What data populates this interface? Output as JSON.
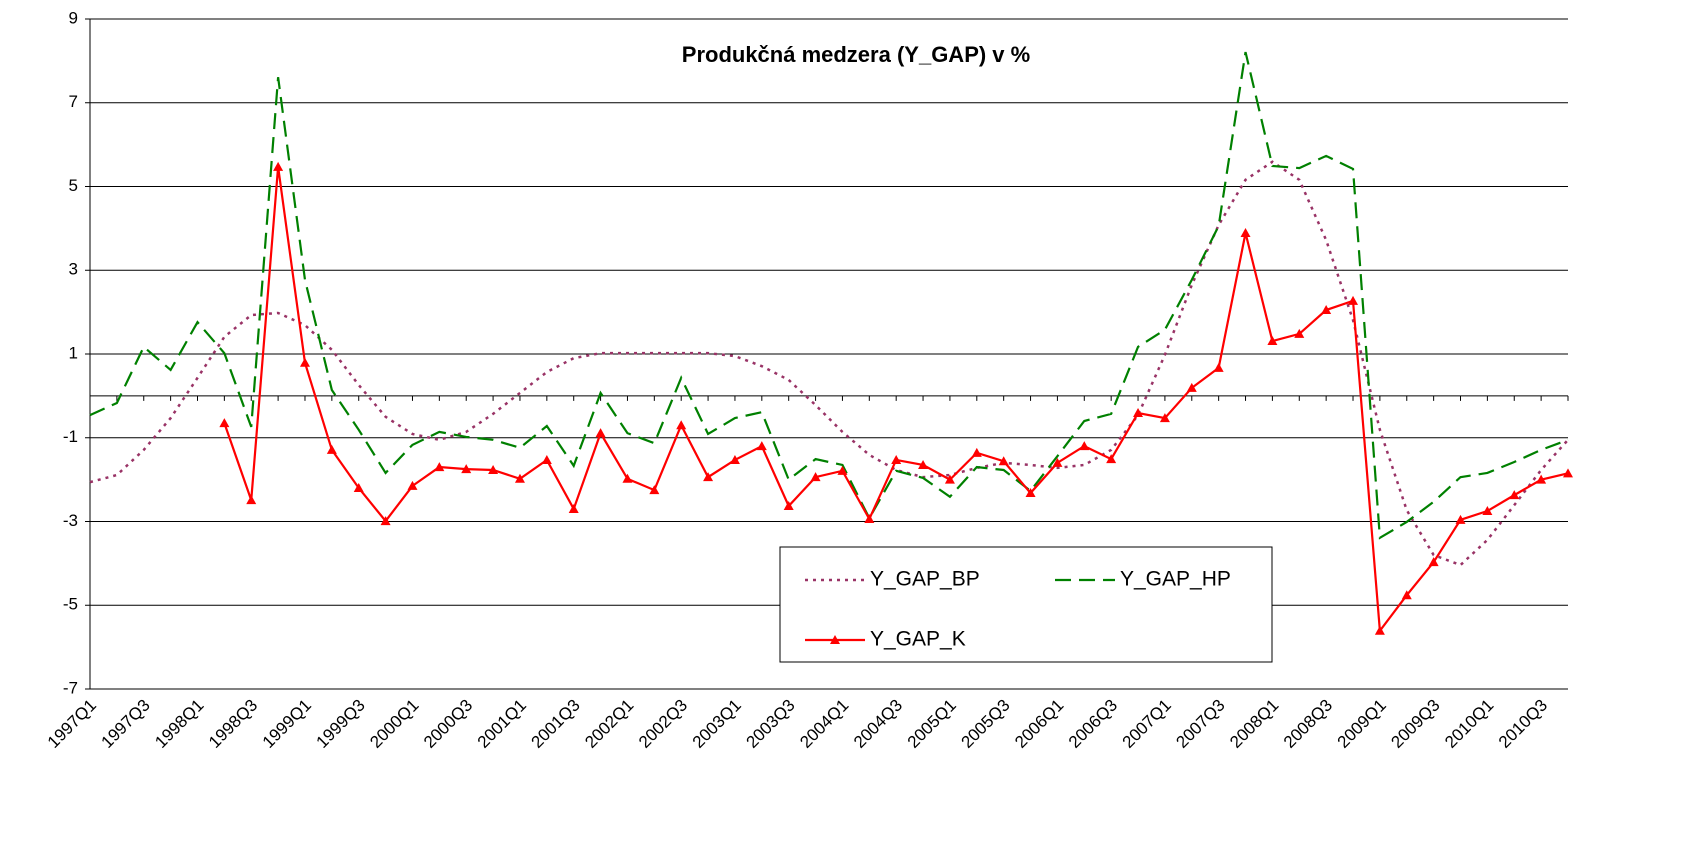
{
  "chart_data": {
    "type": "line",
    "title": "Produkčná medzera (Y_GAP) v %",
    "categories": [
      "1997Q1",
      null,
      "1997Q3",
      null,
      "1998Q1",
      null,
      "1998Q3",
      null,
      "1999Q1",
      null,
      "1999Q3",
      null,
      "2000Q1",
      null,
      "2000Q3",
      null,
      "2001Q1",
      null,
      "2001Q3",
      null,
      "2002Q1",
      null,
      "2002Q3",
      null,
      "2003Q1",
      null,
      "2003Q3",
      null,
      "2004Q1",
      null,
      "2004Q3",
      null,
      "2005Q1",
      null,
      "2005Q3",
      null,
      "2006Q1",
      null,
      "2006Q3",
      null,
      "2007Q1",
      null,
      "2007Q3",
      null,
      "2008Q1",
      null,
      "2008Q3",
      null,
      "2009Q1",
      null,
      "2009Q3",
      null,
      "2010Q1",
      null,
      "2010Q3",
      null
    ],
    "series": [
      {
        "name": "Y_GAP_BP",
        "color": "#993366",
        "style": "dotted",
        "values": [
          -2.06,
          -1.89,
          -1.29,
          -0.53,
          0.43,
          1.41,
          1.93,
          1.98,
          1.69,
          1.1,
          0.26,
          -0.5,
          -0.91,
          -1.05,
          -0.86,
          -0.43,
          0.07,
          0.57,
          0.9,
          1.02,
          1.02,
          1.02,
          1.02,
          1.02,
          0.95,
          0.71,
          0.38,
          -0.22,
          -0.86,
          -1.41,
          -1.77,
          -1.94,
          -1.89,
          -1.72,
          -1.6,
          -1.65,
          -1.72,
          -1.65,
          -1.29,
          -0.46,
          0.98,
          2.65,
          4.08,
          5.16,
          5.59,
          5.16,
          3.72,
          1.81,
          -0.81,
          -2.73,
          -3.8,
          -4.04,
          -3.44,
          -2.61,
          -1.77,
          -1.05
        ]
      },
      {
        "name": "Y_GAP_HP",
        "color": "#008000",
        "style": "dashed",
        "values": [
          -0.46,
          -0.17,
          1.17,
          0.62,
          1.76,
          1.02,
          -0.74,
          7.61,
          2.77,
          0.14,
          -0.81,
          -1.84,
          -1.17,
          -0.86,
          -0.98,
          -1.05,
          -1.24,
          -0.72,
          -1.67,
          0.07,
          -0.89,
          -1.13,
          0.43,
          -0.91,
          -0.53,
          -0.39,
          -2.0,
          -1.51,
          -1.65,
          -2.92,
          -1.79,
          -1.96,
          -2.41,
          -1.7,
          -1.77,
          -2.27,
          -1.44,
          -0.6,
          -0.43,
          1.17,
          1.58,
          2.77,
          4.06,
          8.21,
          5.49,
          5.44,
          5.73,
          5.42,
          -3.39,
          -3.01,
          -2.53,
          -1.94,
          -1.84,
          -1.58,
          -1.29,
          -1.05
        ]
      },
      {
        "name": "Y_GAP_K",
        "color": "#ff0000",
        "style": "solid",
        "marker": "triangle",
        "values": [
          null,
          null,
          null,
          null,
          null,
          -0.65,
          -2.49,
          5.47,
          0.79,
          -1.29,
          -2.2,
          -2.99,
          -2.15,
          -1.7,
          -1.75,
          -1.77,
          -1.98,
          -1.53,
          -2.7,
          -0.89,
          -1.98,
          -2.25,
          -0.7,
          -1.94,
          -1.53,
          -1.2,
          -2.63,
          -1.94,
          -1.79,
          -2.94,
          -1.53,
          -1.65,
          -2.0,
          -1.36,
          -1.56,
          -2.32,
          -1.6,
          -1.2,
          -1.51,
          -0.41,
          -0.53,
          0.19,
          0.67,
          3.89,
          1.31,
          1.48,
          2.05,
          2.27,
          -5.61,
          -4.76,
          -3.97,
          -2.96,
          -2.75,
          -2.37,
          -2.0,
          -1.85
        ]
      }
    ],
    "ylim": [
      -7,
      9
    ],
    "yticks": [
      -7,
      -5,
      -3,
      -1,
      1,
      3,
      5,
      7,
      9
    ],
    "grid": true
  }
}
